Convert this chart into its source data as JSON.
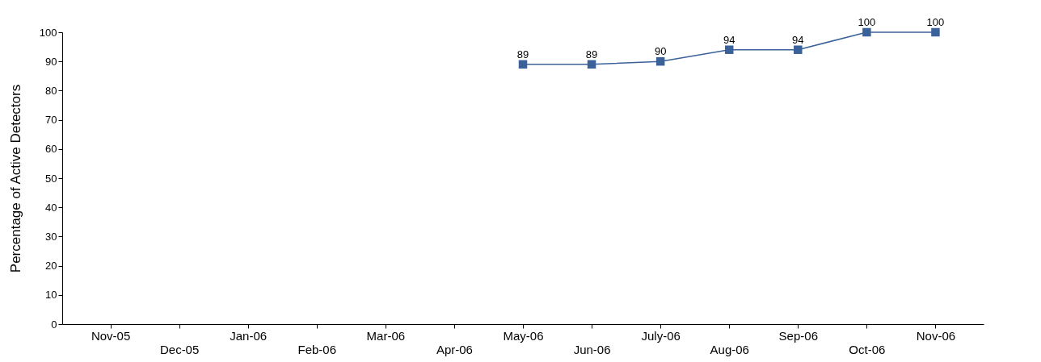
{
  "chart_data": {
    "type": "line",
    "ylabel": "Percentage of Active Detectors",
    "categories": [
      "Nov-05",
      "Dec-05",
      "Jan-06",
      "Feb-06",
      "Mar-06",
      "Apr-06",
      "May-06",
      "Jun-06",
      "July-06",
      "Aug-06",
      "Sep-06",
      "Oct-06",
      "Nov-06"
    ],
    "series": [
      {
        "color": "#3a6199",
        "values": [
          null,
          null,
          null,
          null,
          null,
          null,
          89,
          89,
          90,
          94,
          94,
          100,
          100
        ]
      }
    ],
    "ylim": [
      0,
      100
    ],
    "yticks": [
      0,
      10,
      20,
      30,
      40,
      50,
      60,
      70,
      80,
      90,
      100
    ],
    "grid": false,
    "legend": false,
    "marker": "square",
    "line_style": "solid",
    "data_labels": true
  }
}
